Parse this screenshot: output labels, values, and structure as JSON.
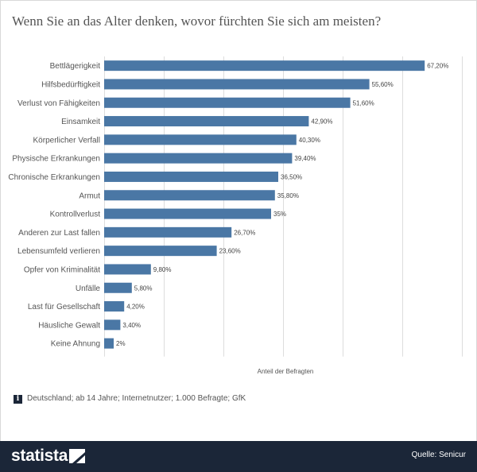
{
  "page": {
    "title": "Wenn Sie an das Alter denken, wovor fürchten Sie sich am meisten?",
    "footnote": "Deutschland; ab 14 Jahre; Internetnutzer; 1.000 Befragte; GfK",
    "info_icon": "i",
    "logo": "statista",
    "source": "Quelle: Senicur"
  },
  "colors": {
    "bar": "#4a77a5",
    "footer": "#1b2638",
    "grid": "#dddddd"
  },
  "chart_data": {
    "type": "bar",
    "orientation": "horizontal",
    "categories": [
      "Bettlägerigkeit",
      "Hilfsbedürftigkeit",
      "Verlust von Fähigkeiten",
      "Einsamkeit",
      "Körperlicher Verfall",
      "Physische Erkrankungen",
      "Chronische Erkrankungen",
      "Armut",
      "Kontrollverlust",
      "Anderen zur Last fallen",
      "Lebensumfeld verlieren",
      "Opfer von Kriminalität",
      "Unfälle",
      "Last für Gesellschaft",
      "Häusliche Gewalt",
      "Keine Ahnung"
    ],
    "values": [
      67.2,
      55.6,
      51.6,
      42.9,
      40.3,
      39.4,
      36.5,
      35.8,
      35,
      26.7,
      23.6,
      9.8,
      5.8,
      4.2,
      3.4,
      2
    ],
    "value_labels": [
      "67,20%",
      "55,60%",
      "51,60%",
      "42,90%",
      "40,30%",
      "39,40%",
      "36,50%",
      "35,80%",
      "35%",
      "26,70%",
      "23,60%",
      "9,80%",
      "5,80%",
      "4,20%",
      "3,40%",
      "2%"
    ],
    "xlabel": "Anteil der Befragten",
    "ylabel": "",
    "xlim": [
      0,
      75
    ],
    "grid": true
  }
}
